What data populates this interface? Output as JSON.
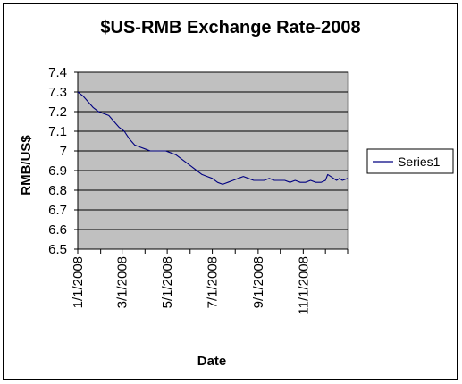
{
  "chart_data": {
    "type": "line",
    "title": "$US-RMB Exchange Rate-2008",
    "xlabel": "Date",
    "ylabel": "RMB/US$",
    "ylim": [
      6.5,
      7.4
    ],
    "yticks": [
      "7.4",
      "7.3",
      "7.2",
      "7.1",
      "7",
      "6.9",
      "6.8",
      "6.7",
      "6.6",
      "6.5"
    ],
    "xlim": [
      "2008-01-01",
      "2008-12-31"
    ],
    "xticks": [
      "1/1/2008",
      "3/1/2008",
      "5/1/2008",
      "7/1/2008",
      "9/1/2008",
      "11/1/2008"
    ],
    "grid": "horizontal",
    "legend_position": "right",
    "plot_background": "#c0c0c0",
    "series": [
      {
        "name": "Series1",
        "color": "#000080",
        "x": [
          "2008-01-01",
          "2008-01-08",
          "2008-01-15",
          "2008-01-22",
          "2008-01-29",
          "2008-02-05",
          "2008-02-12",
          "2008-02-19",
          "2008-02-26",
          "2008-03-04",
          "2008-03-11",
          "2008-03-18",
          "2008-03-25",
          "2008-04-01",
          "2008-04-08",
          "2008-04-15",
          "2008-04-22",
          "2008-04-29",
          "2008-05-06",
          "2008-05-13",
          "2008-05-20",
          "2008-05-27",
          "2008-06-03",
          "2008-06-10",
          "2008-06-17",
          "2008-06-24",
          "2008-07-01",
          "2008-07-08",
          "2008-07-15",
          "2008-07-22",
          "2008-07-29",
          "2008-08-05",
          "2008-08-12",
          "2008-08-19",
          "2008-08-26",
          "2008-09-02",
          "2008-09-09",
          "2008-09-16",
          "2008-09-23",
          "2008-09-30",
          "2008-10-07",
          "2008-10-14",
          "2008-10-21",
          "2008-10-28",
          "2008-11-04",
          "2008-11-11",
          "2008-11-18",
          "2008-11-25",
          "2008-12-01",
          "2008-12-04",
          "2008-12-08",
          "2008-12-12",
          "2008-12-16",
          "2008-12-20",
          "2008-12-24",
          "2008-12-31"
        ],
        "values": [
          7.3,
          7.28,
          7.25,
          7.22,
          7.2,
          7.19,
          7.18,
          7.15,
          7.12,
          7.1,
          7.06,
          7.03,
          7.02,
          7.01,
          7.0,
          7.0,
          7.0,
          7.0,
          6.99,
          6.98,
          6.96,
          6.94,
          6.92,
          6.9,
          6.88,
          6.87,
          6.86,
          6.84,
          6.83,
          6.84,
          6.85,
          6.86,
          6.87,
          6.86,
          6.85,
          6.85,
          6.85,
          6.86,
          6.85,
          6.85,
          6.85,
          6.84,
          6.85,
          6.84,
          6.84,
          6.85,
          6.84,
          6.84,
          6.85,
          6.88,
          6.87,
          6.86,
          6.85,
          6.86,
          6.85,
          6.86
        ]
      }
    ]
  }
}
